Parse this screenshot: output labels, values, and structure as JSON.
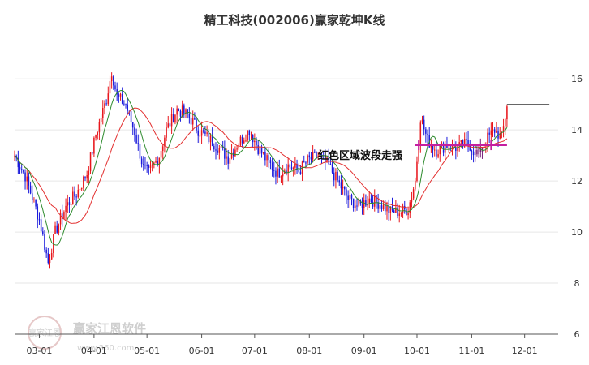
{
  "chart_data": {
    "type": "candlestick",
    "title": "精工科技(002006)赢家乾坤K线",
    "x_ticks": [
      "03-01",
      "04-01",
      "05-01",
      "06-01",
      "07-01",
      "08-01",
      "09-01",
      "10-01",
      "11-01",
      "12-01"
    ],
    "y_ticks": [
      6,
      8,
      10,
      12,
      14,
      16
    ],
    "ylim": [
      6,
      17.5
    ],
    "annotation": "红色区域波段走强",
    "grid": true,
    "colors": {
      "up": "#e8161c",
      "down": "#1a1adb",
      "ma_short": "#2e8b2e",
      "ma_long": "#e33030",
      "band": "#7a1f7a",
      "marker": "#c41fa0"
    },
    "watermark": {
      "brand": "赢家江恩软件",
      "site": "www.360.com",
      "seal": "赢家江恩"
    },
    "anchors": [
      [
        "02-16",
        13.0
      ],
      [
        "02-22",
        12.2
      ],
      [
        "03-01",
        10.5
      ],
      [
        "03-06",
        8.8
      ],
      [
        "03-10",
        10.0
      ],
      [
        "03-16",
        11.0
      ],
      [
        "03-22",
        11.5
      ],
      [
        "03-28",
        12.3
      ],
      [
        "04-02",
        13.8
      ],
      [
        "04-08",
        15.2
      ],
      [
        "04-11",
        16.3
      ],
      [
        "04-14",
        15.3
      ],
      [
        "04-19",
        15.0
      ],
      [
        "04-24",
        13.9
      ],
      [
        "04-29",
        12.5
      ],
      [
        "05-02",
        12.3
      ],
      [
        "05-08",
        13.0
      ],
      [
        "05-12",
        14.0
      ],
      [
        "05-18",
        14.8
      ],
      [
        "05-24",
        14.6
      ],
      [
        "05-30",
        14.0
      ],
      [
        "06-06",
        13.6
      ],
      [
        "06-12",
        13.2
      ],
      [
        "06-16",
        12.9
      ],
      [
        "06-22",
        13.5
      ],
      [
        "06-28",
        14.0
      ],
      [
        "07-03",
        13.3
      ],
      [
        "07-08",
        12.8
      ],
      [
        "07-14",
        12.3
      ],
      [
        "07-20",
        12.6
      ],
      [
        "07-26",
        12.4
      ],
      [
        "07-31",
        12.8
      ],
      [
        "08-06",
        13.0
      ],
      [
        "08-12",
        12.6
      ],
      [
        "08-17",
        12.0
      ],
      [
        "08-23",
        11.3
      ],
      [
        "08-29",
        11.0
      ],
      [
        "09-04",
        11.3
      ],
      [
        "09-10",
        11.1
      ],
      [
        "09-16",
        10.8
      ],
      [
        "09-22",
        10.8
      ],
      [
        "09-26",
        10.9
      ],
      [
        "09-30",
        12.0
      ],
      [
        "10-03",
        14.5
      ],
      [
        "10-07",
        13.6
      ],
      [
        "10-12",
        13.2
      ],
      [
        "10-18",
        13.4
      ],
      [
        "10-24",
        13.3
      ],
      [
        "10-30",
        13.5
      ],
      [
        "11-04",
        13.0
      ],
      [
        "11-09",
        13.6
      ],
      [
        "11-14",
        14.0
      ],
      [
        "11-18",
        13.7
      ],
      [
        "11-20",
        14.5
      ],
      [
        "11-21",
        15.0
      ]
    ]
  }
}
